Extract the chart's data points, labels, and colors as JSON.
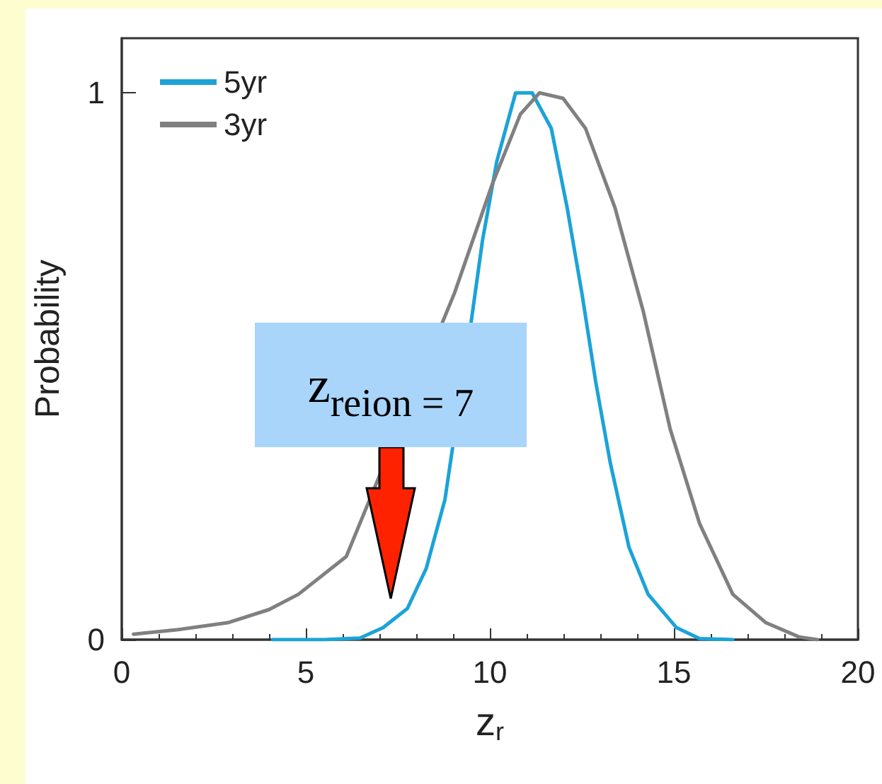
{
  "chart_data": {
    "type": "line",
    "xlabel": "z$_{r}$",
    "ylabel": "Probability",
    "xlim": [
      0,
      20
    ],
    "xticks": [
      0,
      5,
      10,
      15,
      20
    ],
    "ylim": [
      0,
      1.1
    ],
    "yticks": [
      0,
      1
    ],
    "legend": "top left",
    "marker": "none",
    "line_style": "solid",
    "annotations": [
      "z$_{reion = 7}$"
    ],
    "series": [
      {
        "name": "5yr",
        "color": "#1ba3d8",
        "x": [
          4.1,
          5.5,
          6.47,
          7.1,
          7.76,
          8.27,
          8.78,
          9.49,
          9.8,
          10.19,
          10.7,
          11.15,
          11.67,
          12.1,
          12.5,
          12.88,
          13.27,
          13.78,
          14.3,
          15.07,
          15.7,
          16.6
        ],
        "values": [
          0,
          0,
          0.003,
          0.022,
          0.057,
          0.13,
          0.256,
          0.58,
          0.73,
          0.875,
          1,
          1,
          0.935,
          0.79,
          0.634,
          0.47,
          0.324,
          0.169,
          0.083,
          0.022,
          0.002,
          0
        ]
      },
      {
        "name": "3yr",
        "color": "#808080",
        "x": [
          0.32,
          1.5,
          2.88,
          4.0,
          4.8,
          6.1,
          9.04,
          10.06,
          10.83,
          11.35,
          11.99,
          12.6,
          13.4,
          14.17,
          14.9,
          15.7,
          16.6,
          17.5,
          18.4,
          18.9
        ],
        "values": [
          0.01,
          0.018,
          0.031,
          0.055,
          0.083,
          0.152,
          0.634,
          0.832,
          0.961,
          1,
          0.99,
          0.935,
          0.79,
          0.6,
          0.385,
          0.212,
          0.083,
          0.031,
          0.005,
          0
        ]
      }
    ]
  }
}
